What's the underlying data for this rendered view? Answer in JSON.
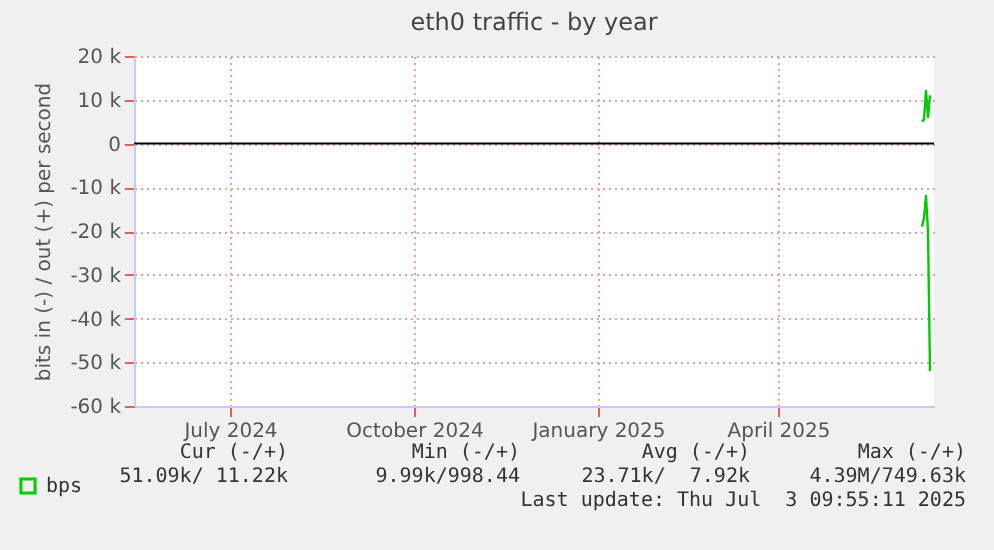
{
  "chart_data": {
    "type": "line",
    "title": "eth0 traffic - by year",
    "ylabel": "bits in (-) / out (+) per second",
    "xlim": [
      "2024-05-29",
      "2025-07-03"
    ],
    "xticks": [
      {
        "value": "2024-07-16",
        "label": "July 2024"
      },
      {
        "value": "2024-10-16",
        "label": "October 2024"
      },
      {
        "value": "2025-01-16",
        "label": "January 2025"
      },
      {
        "value": "2025-04-16",
        "label": "April 2025"
      }
    ],
    "ylim": [
      -60000,
      20000
    ],
    "yticks": [
      {
        "value": -60000,
        "label": "-60 k"
      },
      {
        "value": -50000,
        "label": "-50 k"
      },
      {
        "value": -40000,
        "label": "-40 k"
      },
      {
        "value": -30000,
        "label": "-30 k"
      },
      {
        "value": -20000,
        "label": "-20 k"
      },
      {
        "value": -10000,
        "label": "-10 k"
      },
      {
        "value": 0,
        "label": "0"
      },
      {
        "value": 10000,
        "label": "10 k"
      },
      {
        "value": 20000,
        "label": "20 k"
      }
    ],
    "x": [
      "2025-06-27",
      "2025-06-28",
      "2025-06-29",
      "2025-06-30",
      "2025-07-01"
    ],
    "series": [
      {
        "name": "bps",
        "color": "#00cc00",
        "values": [
          5000,
          5500,
          12000,
          6000,
          11000
        ]
      },
      {
        "color": "#00cc00",
        "values": [
          -19000,
          -17000,
          -12000,
          -20000,
          -52000
        ]
      }
    ],
    "ref_lines": [
      {
        "axis": "y",
        "value": 0,
        "color": "#000000"
      }
    ],
    "grid": true,
    "legend": "bottom left",
    "annotations": [
      "Cur (-/+)",
      "Min (-/+)",
      "Avg (-/+)",
      "Max (-/+)",
      "51.09k/ 11.22k",
      "9.99k/998.44",
      "23.71k/  7.92k",
      "4.39M/749.63k",
      "Last update: Thu Jul  3 09:55:11 2025"
    ]
  }
}
